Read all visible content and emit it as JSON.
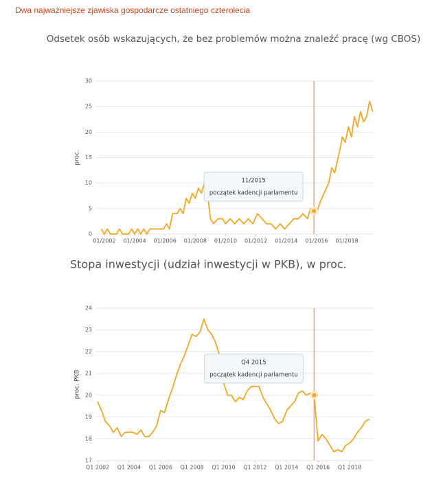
{
  "header": {
    "title": "Dwa najważniejsze zjawiska gospodarcze ostatniego czterolecia"
  },
  "chart_data": [
    {
      "type": "line",
      "title": "Odsetek osób wskazujących, że bez problemów można znaleźć pracę (wg CBOS)",
      "y_label": "proc.",
      "x": [
        2001.8,
        2002.0,
        2002.2,
        2002.4,
        2002.8,
        2003.0,
        2003.2,
        2003.6,
        2003.8,
        2004.0,
        2004.2,
        2004.4,
        2004.6,
        2004.8,
        2005.0,
        2005.3,
        2005.6,
        2005.9,
        2006.1,
        2006.3,
        2006.5,
        2006.8,
        2007.0,
        2007.2,
        2007.4,
        2007.6,
        2007.8,
        2008.0,
        2008.2,
        2008.4,
        2008.6,
        2008.8,
        2009.0,
        2009.2,
        2009.5,
        2009.8,
        2010.0,
        2010.3,
        2010.6,
        2010.9,
        2011.2,
        2011.5,
        2011.8,
        2012.1,
        2012.4,
        2012.7,
        2013.0,
        2013.3,
        2013.6,
        2013.9,
        2014.2,
        2014.5,
        2014.8,
        2015.1,
        2015.4,
        2015.6,
        2015.83,
        2016.0,
        2016.2,
        2016.5,
        2016.8,
        2017.0,
        2017.2,
        2017.5,
        2017.7,
        2017.9,
        2018.1,
        2018.3,
        2018.5,
        2018.7,
        2018.9,
        2019.1,
        2019.3,
        2019.5,
        2019.7
      ],
      "series": [
        {
          "name": "proc.",
          "color": "#f5a623",
          "values": [
            1,
            0,
            1,
            0,
            0,
            1,
            0,
            0,
            1,
            0,
            1,
            0,
            1,
            0,
            1,
            1,
            1,
            1,
            2,
            1,
            4,
            4,
            5,
            4,
            7,
            6,
            8,
            7,
            9,
            8,
            10,
            8,
            3,
            2,
            3,
            3,
            2,
            3,
            2,
            3,
            2,
            3,
            2,
            4,
            3,
            2,
            2,
            1,
            2,
            1,
            2,
            3,
            3,
            4,
            3,
            5,
            4.5,
            4,
            6,
            8,
            10,
            13,
            12,
            16,
            19,
            18,
            21,
            19,
            23,
            21,
            24,
            22,
            23,
            26,
            24
          ]
        }
      ],
      "xlim": [
        2001.46,
        2019.81
      ],
      "ylim": [
        0,
        30
      ],
      "xticks": [
        {
          "value": 2002,
          "label": "01/2002"
        },
        {
          "value": 2004,
          "label": "01/2004"
        },
        {
          "value": 2006,
          "label": "01/2006"
        },
        {
          "value": 2008,
          "label": "01/2008"
        },
        {
          "value": 2010,
          "label": "01/2010"
        },
        {
          "value": 2012,
          "label": "01/2012"
        },
        {
          "value": 2014,
          "label": "01/2014"
        },
        {
          "value": 2016,
          "label": "01/2016"
        },
        {
          "value": 2018,
          "label": "01/2018"
        }
      ],
      "yticks": [
        0,
        5,
        10,
        15,
        20,
        25,
        30
      ],
      "grid": true,
      "annotation": {
        "x": 2015.83,
        "label": "11/2015",
        "text": "początek kadencji parlamentu",
        "color": "#f2a07b"
      }
    },
    {
      "type": "line",
      "title": "Stopa inwestycji (udział inwestycji w PKB), w proc.",
      "y_label": "proc. PKB",
      "x": [
        2002.0,
        2002.25,
        2002.5,
        2002.75,
        2003.0,
        2003.25,
        2003.5,
        2003.75,
        2004.0,
        2004.25,
        2004.5,
        2004.75,
        2005.0,
        2005.25,
        2005.5,
        2005.75,
        2006.0,
        2006.25,
        2006.5,
        2006.75,
        2007.0,
        2007.25,
        2007.5,
        2007.75,
        2008.0,
        2008.25,
        2008.5,
        2008.75,
        2009.0,
        2009.25,
        2009.5,
        2009.75,
        2010.0,
        2010.25,
        2010.5,
        2010.75,
        2011.0,
        2011.25,
        2011.5,
        2011.75,
        2012.0,
        2012.25,
        2012.5,
        2012.75,
        2013.0,
        2013.25,
        2013.5,
        2013.75,
        2014.0,
        2014.25,
        2014.5,
        2014.75,
        2015.0,
        2015.25,
        2015.5,
        2015.75,
        2016.0,
        2016.25,
        2016.5,
        2016.75,
        2017.0,
        2017.25,
        2017.5,
        2017.75,
        2018.0,
        2018.25,
        2018.5,
        2018.75,
        2019.0,
        2019.25
      ],
      "series": [
        {
          "name": "proc. PKB",
          "color": "#f5a623",
          "values": [
            19.7,
            19.3,
            18.8,
            18.6,
            18.3,
            18.5,
            18.1,
            18.3,
            18.3,
            18.3,
            18.2,
            18.4,
            18.1,
            18.1,
            18.3,
            18.6,
            19.3,
            19.2,
            19.8,
            20.3,
            20.9,
            21.4,
            21.8,
            22.3,
            22.8,
            22.7,
            22.9,
            23.5,
            23.0,
            22.8,
            22.4,
            21.8,
            20.6,
            20.0,
            20.0,
            19.7,
            19.9,
            19.8,
            20.2,
            20.4,
            20.4,
            20.4,
            19.9,
            19.6,
            19.3,
            18.9,
            18.7,
            18.8,
            19.3,
            19.5,
            19.7,
            20.1,
            20.2,
            20.0,
            20.1,
            20.0,
            17.9,
            18.2,
            18.0,
            17.7,
            17.4,
            17.5,
            17.4,
            17.7,
            17.8,
            18.0,
            18.3,
            18.5,
            18.8,
            18.9
          ]
        }
      ],
      "xlim": [
        2001.91,
        2019.57
      ],
      "ylim": [
        17,
        24
      ],
      "xticks": [
        {
          "value": 2002,
          "label": "Q1 2002"
        },
        {
          "value": 2004,
          "label": "Q1 2004"
        },
        {
          "value": 2006,
          "label": "Q1 2006"
        },
        {
          "value": 2008,
          "label": "Q1 2008"
        },
        {
          "value": 2010,
          "label": "Q1 2010"
        },
        {
          "value": 2012,
          "label": "Q1 2012"
        },
        {
          "value": 2014,
          "label": "Q1 2014"
        },
        {
          "value": 2016,
          "label": "Q1 2016"
        },
        {
          "value": 2018,
          "label": "Q1 2018"
        }
      ],
      "yticks": [
        17,
        18,
        19,
        20,
        21,
        22,
        23,
        24
      ],
      "grid": true,
      "annotation": {
        "x": 2015.75,
        "label": "Q4 2015",
        "text": "początek kadencji parlamentu",
        "color": "#f2a07b"
      }
    }
  ]
}
